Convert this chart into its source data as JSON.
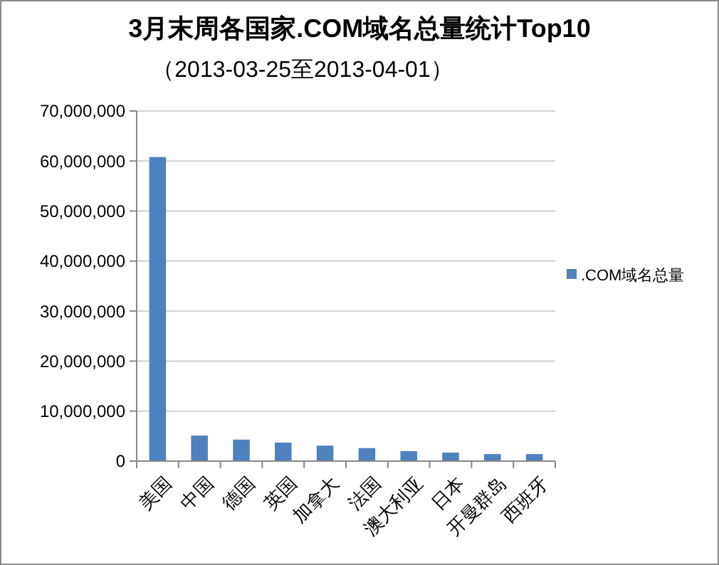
{
  "chart_data": {
    "type": "bar",
    "title": "3月末周各国家.COM域名总量统计Top10",
    "subtitle": "（2013-03-25至2013-04-01）",
    "categories": [
      "美国",
      "中国",
      "德国",
      "英国",
      "加拿大",
      "法国",
      "澳大利亚",
      "日本",
      "开曼群岛",
      "西班牙"
    ],
    "series": [
      {
        "name": ".COM域名总量",
        "color": "#4f81bd",
        "values": [
          60800000,
          5100000,
          4300000,
          3700000,
          3100000,
          2600000,
          2000000,
          1700000,
          1400000,
          1400000
        ]
      }
    ],
    "ylim": [
      0,
      70000000
    ],
    "yticks": [
      {
        "value": 0,
        "label": "0"
      },
      {
        "value": 10000000,
        "label": "10,000,000"
      },
      {
        "value": 20000000,
        "label": "20,000,000"
      },
      {
        "value": 30000000,
        "label": "30,000,000"
      },
      {
        "value": 40000000,
        "label": "40,000,000"
      },
      {
        "value": 50000000,
        "label": "50,000,000"
      },
      {
        "value": 60000000,
        "label": "60,000,000"
      },
      {
        "value": 70000000,
        "label": "70,000,000"
      }
    ],
    "grid": "y",
    "legend": "right"
  }
}
